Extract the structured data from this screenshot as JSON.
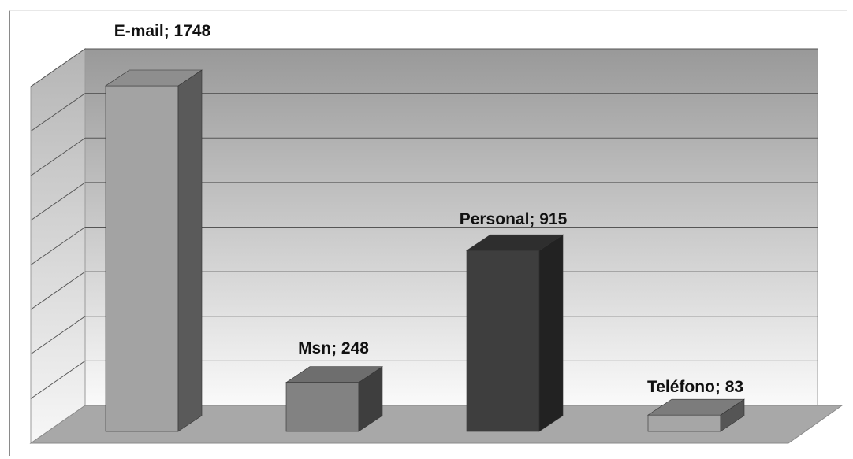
{
  "chart_data": {
    "type": "bar",
    "style": "3d-column",
    "categories": [
      "E-mail",
      "Msn",
      "Personal",
      "Teléfono"
    ],
    "values": [
      1748,
      248,
      915,
      83
    ],
    "data_labels": [
      "E-mail; 1748",
      "Msn; 248",
      "Personal; 915",
      "Teléfono; 83"
    ],
    "ylim": [
      0,
      2000
    ],
    "grid": true,
    "legend": "none",
    "colors": {
      "E-mail": "#a3a3a3",
      "Msn": "#828282",
      "Personal": "#3e3e3e",
      "Teléfono": "#a6a6a6",
      "wall_top": "#999999",
      "wall_bottom": "#fafafa",
      "floor": "#a8a8a8",
      "gridline": "#555555"
    }
  }
}
